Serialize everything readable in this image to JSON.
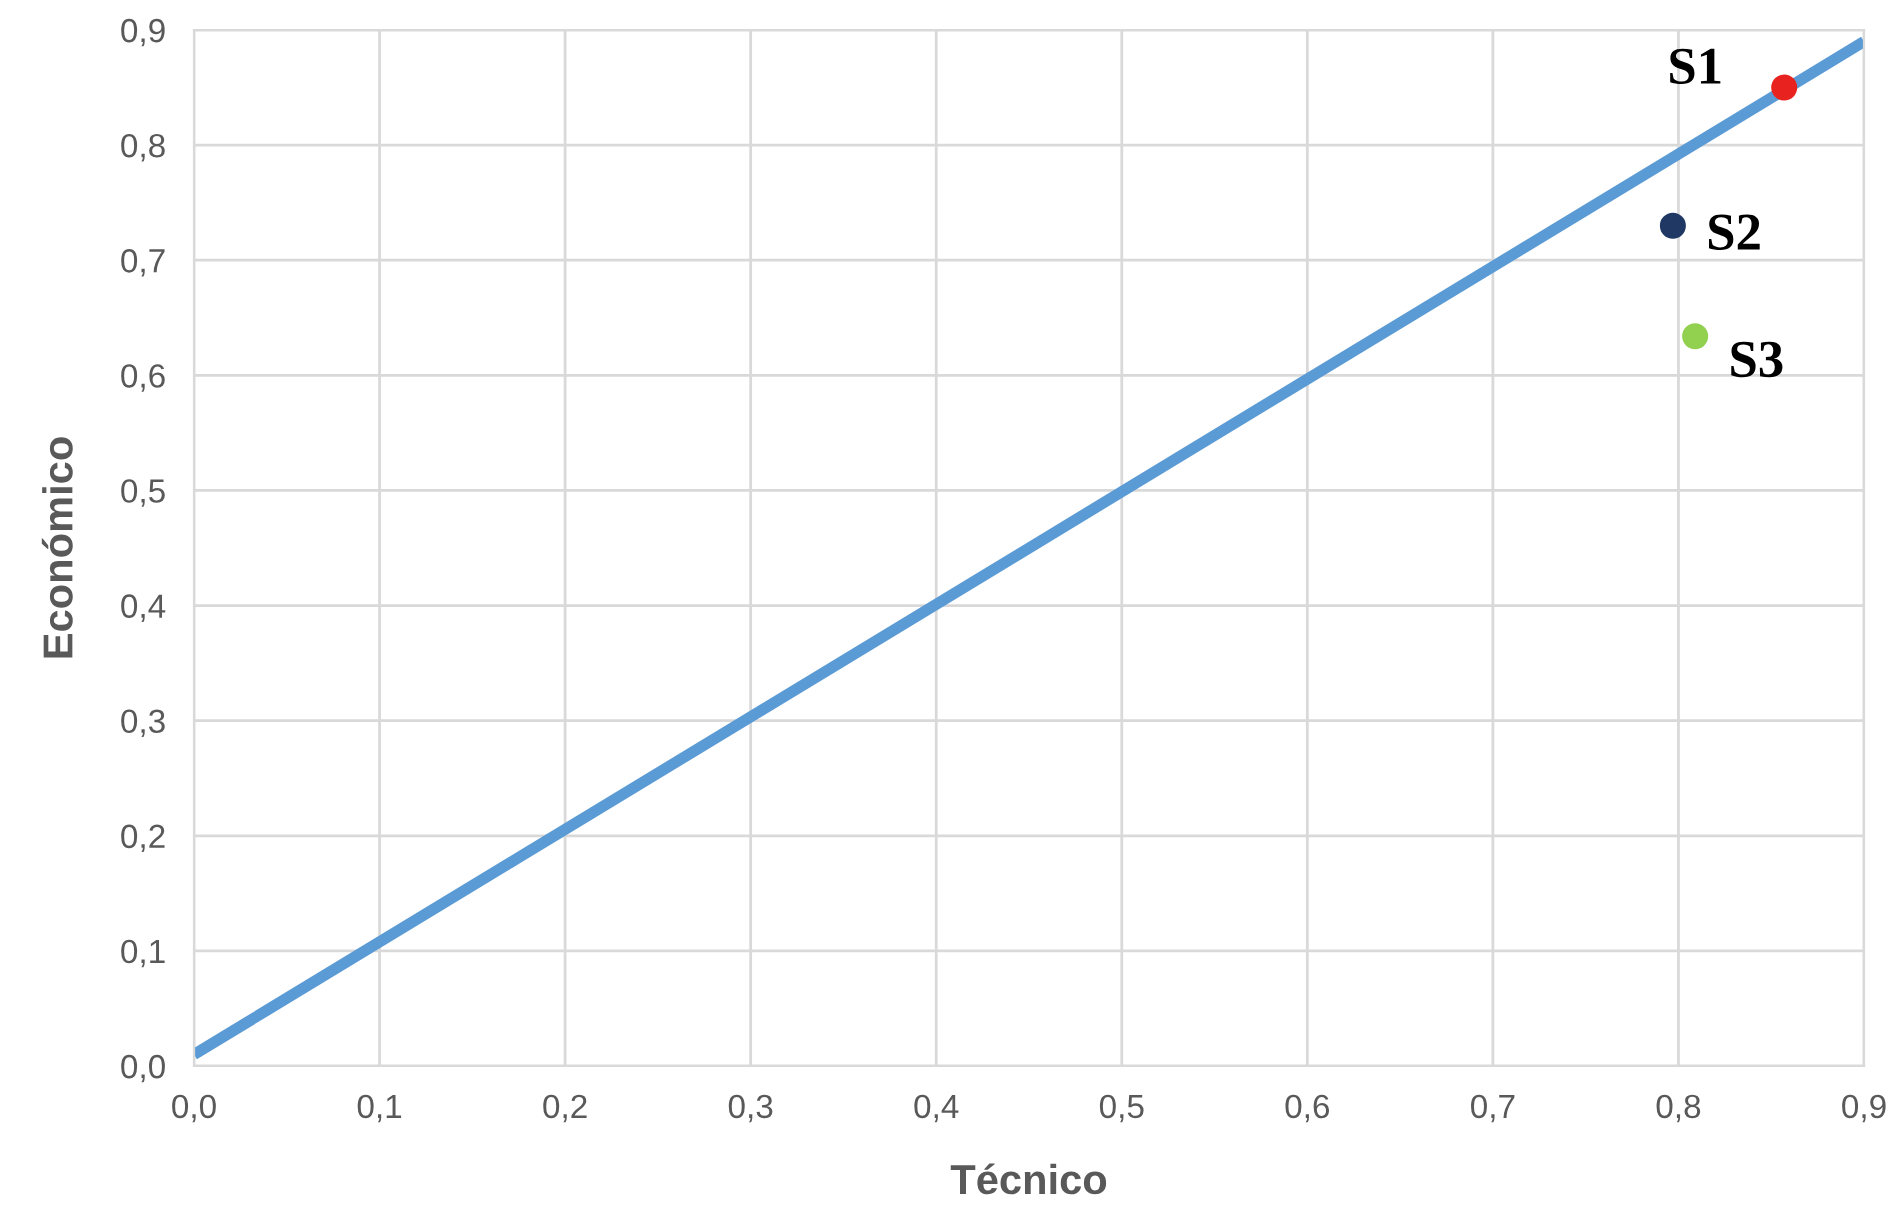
{
  "chart_data": {
    "type": "scatter",
    "xlabel": "Técnico",
    "ylabel": "Económico",
    "series": [
      {
        "type": "line",
        "marker": "none",
        "color": "#5b9bd5",
        "x": [
          0.0,
          0.9
        ],
        "values": [
          0.01,
          0.89
        ]
      },
      {
        "name": "S1",
        "color": "#e8231f",
        "x": [
          0.857
        ],
        "values": [
          0.85
        ]
      },
      {
        "name": "S2",
        "color": "#1f3864",
        "x": [
          0.797
        ],
        "values": [
          0.73
        ]
      },
      {
        "name": "S3",
        "color": "#92d050",
        "x": [
          0.809
        ],
        "values": [
          0.634
        ]
      }
    ],
    "xlim": [
      0.0,
      0.9
    ],
    "ylim": [
      0.0,
      0.9
    ],
    "xticks": [
      {
        "value": 0.0,
        "label": "0,0"
      },
      {
        "value": 0.1,
        "label": "0,1"
      },
      {
        "value": 0.2,
        "label": "0,2"
      },
      {
        "value": 0.3,
        "label": "0,3"
      },
      {
        "value": 0.4,
        "label": "0,4"
      },
      {
        "value": 0.5,
        "label": "0,5"
      },
      {
        "value": 0.6,
        "label": "0,6"
      },
      {
        "value": 0.7,
        "label": "0,7"
      },
      {
        "value": 0.8,
        "label": "0,8"
      },
      {
        "value": 0.9,
        "label": "0,9"
      }
    ],
    "yticks": [
      {
        "value": 0.0,
        "label": "0,0"
      },
      {
        "value": 0.1,
        "label": "0,1"
      },
      {
        "value": 0.2,
        "label": "0,2"
      },
      {
        "value": 0.3,
        "label": "0,3"
      },
      {
        "value": 0.4,
        "label": "0,4"
      },
      {
        "value": 0.5,
        "label": "0,5"
      },
      {
        "value": 0.6,
        "label": "0,6"
      },
      {
        "value": 0.7,
        "label": "0,7"
      },
      {
        "value": 0.8,
        "label": "0,8"
      },
      {
        "value": 0.9,
        "label": "0,9"
      }
    ],
    "grid": true,
    "marker": "circle"
  }
}
